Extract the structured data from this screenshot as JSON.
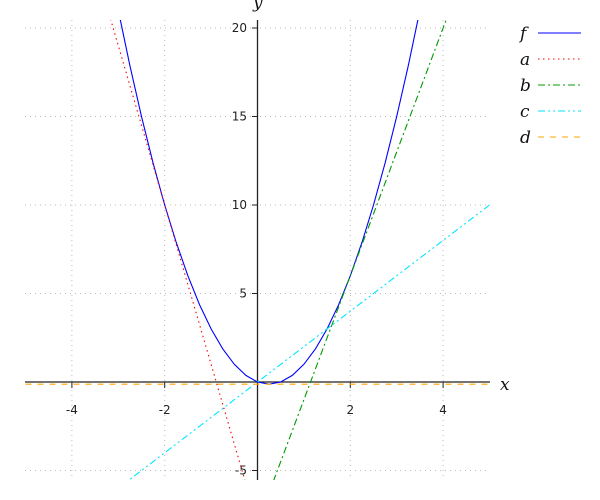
{
  "chart_data": {
    "type": "line",
    "xlabel": "x",
    "ylabel": "y",
    "xlim": [
      -5,
      5
    ],
    "ylim": [
      -5.5,
      20.3
    ],
    "xticks": [
      -4,
      -2,
      2,
      4
    ],
    "yticks": [
      -5,
      5,
      10,
      15,
      20
    ],
    "grid": true,
    "legend_position": "right",
    "series": [
      {
        "name": "f",
        "color": "#0000ff",
        "style": "solid",
        "x": [
          -3,
          -2.75,
          -2.5,
          -2.25,
          -2,
          -1.75,
          -1.5,
          -1.25,
          -1,
          -0.75,
          -0.5,
          -0.25,
          0,
          0.25,
          0.5,
          0.75,
          1,
          1.25,
          1.5,
          1.75,
          2,
          2.25,
          2.5,
          2.75,
          3,
          3.25,
          3.5
        ],
        "y": [
          21,
          17.875,
          15,
          12.375,
          10,
          7.875,
          6,
          4.375,
          3,
          1.875,
          1,
          0.375,
          0,
          -0.125,
          0,
          0.375,
          1,
          1.875,
          3,
          4.375,
          6,
          7.875,
          10,
          12.375,
          15,
          17.875,
          21
        ]
      },
      {
        "name": "a",
        "color": "#ff0000",
        "style": "dotted",
        "x": [
          -3.5,
          0
        ],
        "y": [
          23.5,
          -8
        ]
      },
      {
        "name": "b",
        "color": "#009900",
        "style": "dashdot",
        "x": [
          0,
          4.5
        ],
        "y": [
          -8,
          23.5
        ]
      },
      {
        "name": "c",
        "color": "#00e5ff",
        "style": "dashdotdot",
        "x": [
          -3,
          5
        ],
        "y": [
          -6,
          10
        ]
      },
      {
        "name": "d",
        "color": "#ffa500",
        "style": "dashed",
        "x": [
          -5,
          5
        ],
        "y": [
          -0.125,
          -0.125
        ]
      }
    ]
  }
}
